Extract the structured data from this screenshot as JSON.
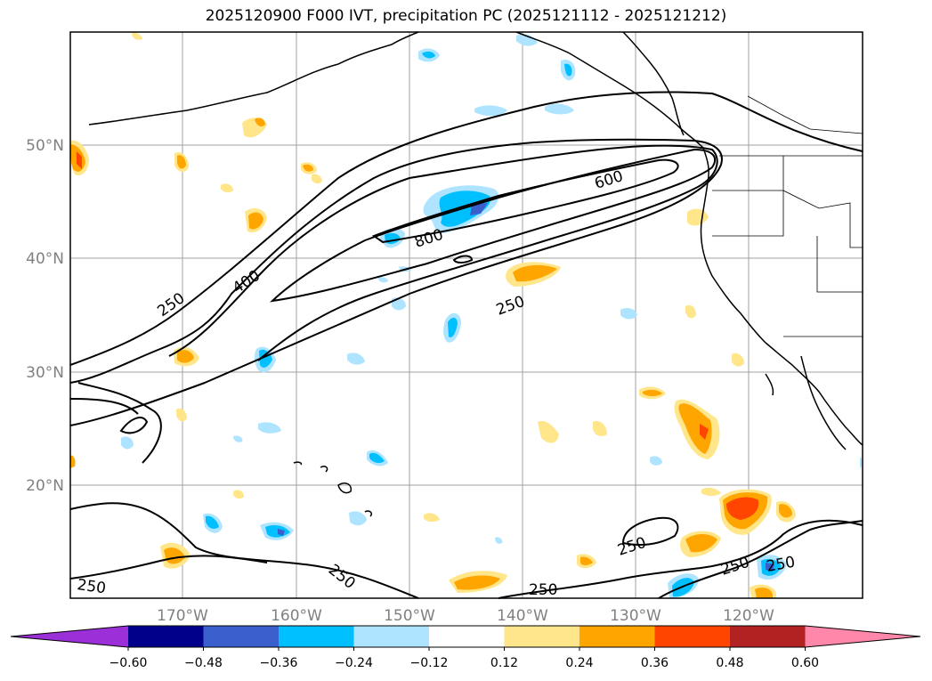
{
  "title": "2025120900 F000 IVT, precipitation PC (2025121112 - 2025121212)",
  "latitude_labels": [
    "50°N",
    "40°N",
    "30°N",
    "20°N"
  ],
  "longitude_labels": [
    "170°W",
    "160°W",
    "150°W",
    "140°W",
    "130°W",
    "120°W"
  ],
  "colorbar": {
    "ticks": [
      "−0.60",
      "−0.48",
      "−0.36",
      "−0.24",
      "−0.12",
      "0.12",
      "0.24",
      "0.36",
      "0.48",
      "0.60"
    ],
    "colors": [
      "#9b30d9",
      "#00008b",
      "#3a5fcd",
      "#00bfff",
      "#aee4ff",
      "#ffffff",
      "#ffe68a",
      "#ffa500",
      "#ff4500",
      "#b22222",
      "#ff88aa"
    ]
  },
  "contour_labels": [
    {
      "text": "250"
    },
    {
      "text": "400"
    },
    {
      "text": "800"
    },
    {
      "text": "600"
    },
    {
      "text": "250"
    },
    {
      "text": "250"
    },
    {
      "text": "250"
    },
    {
      "text": "250"
    },
    {
      "text": "250"
    },
    {
      "text": "250"
    },
    {
      "text": "250"
    }
  ],
  "legend_colors": {
    "coast": "#000000",
    "grid": "#a0a0a0"
  }
}
